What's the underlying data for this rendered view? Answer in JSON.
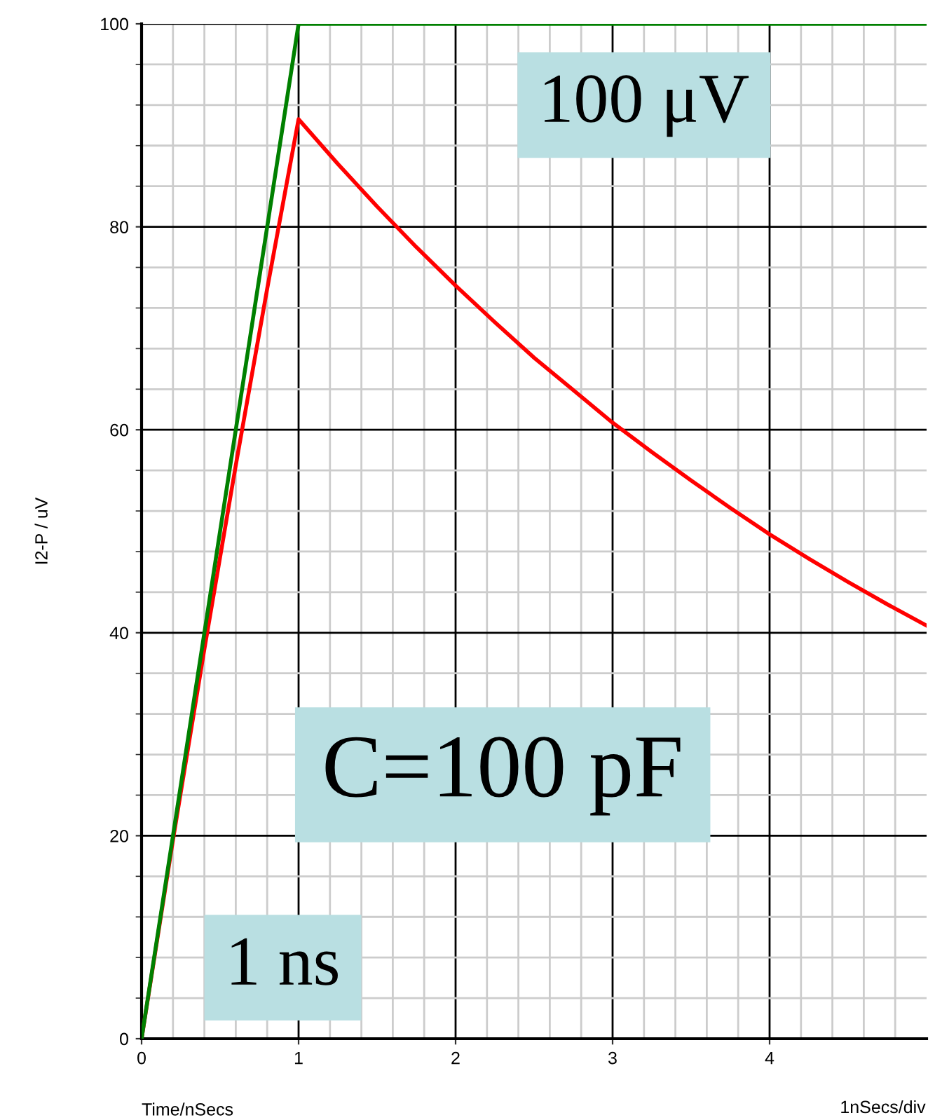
{
  "chart_data": {
    "type": "line",
    "xlabel": "Time/nSecs",
    "ylabel": "I2-P / uV",
    "x": [
      0,
      0.2,
      0.4,
      0.6,
      0.8,
      1,
      1.25,
      1.5,
      1.75,
      2,
      2.25,
      2.5,
      2.75,
      3,
      3.25,
      3.5,
      3.75,
      4,
      4.25,
      4.5,
      4.75,
      5
    ],
    "series": [
      {
        "color": "#ff0000",
        "values": [
          0,
          19.6,
          38.4,
          56.5,
          73.9,
          90.6,
          86.2,
          82.0,
          78.0,
          74.2,
          70.6,
          67.1,
          63.9,
          60.7,
          57.8,
          55.0,
          52.3,
          49.7,
          47.3,
          45.0,
          42.8,
          40.7
        ]
      },
      {
        "color": "#008000",
        "x": [
          0,
          1,
          5
        ],
        "values": [
          0,
          100,
          100
        ]
      }
    ],
    "xlim": [
      0,
      5
    ],
    "ylim": [
      0,
      100
    ],
    "xticks": [
      0,
      {
        "value": 0.2,
        "label": null
      },
      {
        "value": 0.4,
        "label": null
      },
      {
        "value": 0.6,
        "label": null
      },
      {
        "value": 0.8,
        "label": null
      },
      1,
      {
        "value": 1.2,
        "label": null
      },
      {
        "value": 1.4,
        "label": null
      },
      {
        "value": 1.6,
        "label": null
      },
      {
        "value": 1.8,
        "label": null
      },
      2,
      {
        "value": 2.2,
        "label": null
      },
      {
        "value": 2.4,
        "label": null
      },
      {
        "value": 2.6,
        "label": null
      },
      {
        "value": 2.8,
        "label": null
      },
      3,
      {
        "value": 3.2,
        "label": null
      },
      {
        "value": 3.4,
        "label": null
      },
      {
        "value": 3.6,
        "label": null
      },
      {
        "value": 3.8,
        "label": null
      },
      4,
      {
        "value": 4.2,
        "label": null
      },
      {
        "value": 4.4,
        "label": null
      },
      {
        "value": 4.6,
        "label": null
      },
      {
        "value": 4.8,
        "label": null
      }
    ],
    "yticks": [
      0,
      {
        "value": 4,
        "label": null
      },
      {
        "value": 8,
        "label": null
      },
      {
        "value": 12,
        "label": null
      },
      {
        "value": 16,
        "label": null
      },
      20,
      {
        "value": 24,
        "label": null
      },
      {
        "value": 28,
        "label": null
      },
      {
        "value": 32,
        "label": null
      },
      {
        "value": 36,
        "label": null
      },
      40,
      {
        "value": 44,
        "label": null
      },
      {
        "value": 48,
        "label": null
      },
      {
        "value": 52,
        "label": null
      },
      {
        "value": 56,
        "label": null
      },
      60,
      {
        "value": 64,
        "label": null
      },
      {
        "value": 68,
        "label": null
      },
      {
        "value": 72,
        "label": null
      },
      {
        "value": 76,
        "label": null
      },
      80,
      {
        "value": 84,
        "label": null
      },
      {
        "value": 88,
        "label": null
      },
      {
        "value": 92,
        "label": null
      },
      {
        "value": 96,
        "label": null
      },
      100
    ],
    "grid": true,
    "marker": "none",
    "line_style": "solid",
    "legend": false,
    "annotations": [
      "100 μV",
      "C=100 pF",
      "1 ns",
      "1nSecs/div"
    ]
  }
}
